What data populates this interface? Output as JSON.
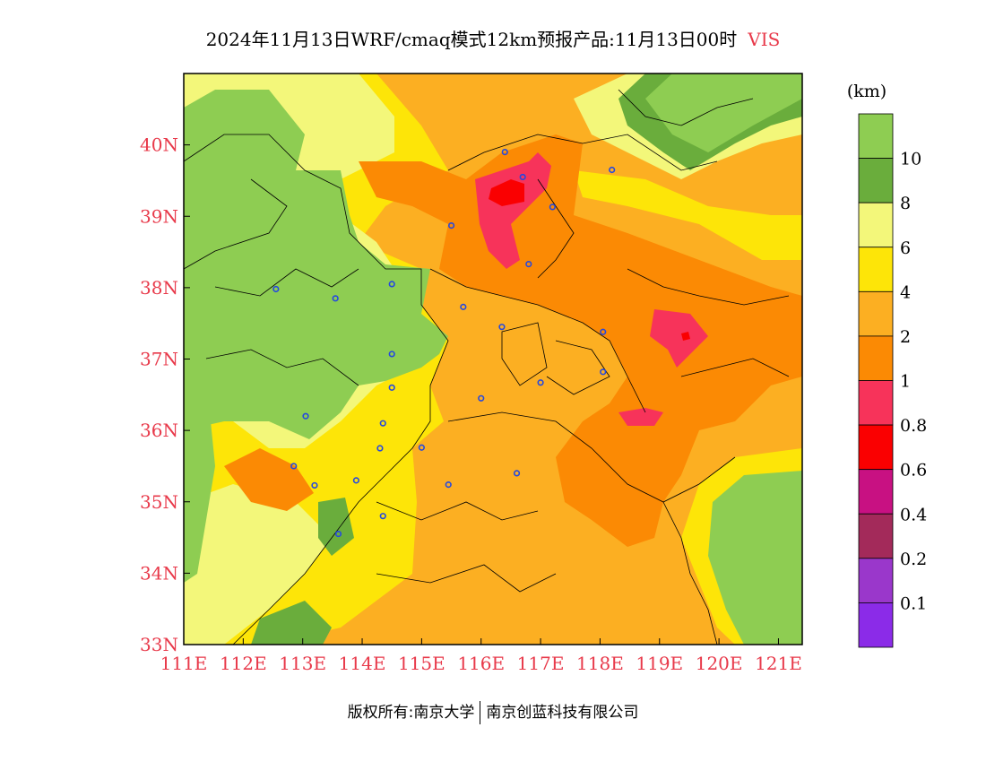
{
  "title": {
    "text": "2024年11月13日WRF/cmaq模式12km预报产品:11月13日00时",
    "variable": "VIS"
  },
  "map": {
    "lon_range": [
      111,
      121.4
    ],
    "lat_range": [
      33,
      41
    ],
    "lon_ticks": [
      "111E",
      "112E",
      "113E",
      "114E",
      "115E",
      "116E",
      "117E",
      "118E",
      "119E",
      "120E",
      "121E"
    ],
    "lat_ticks": [
      "33N",
      "34N",
      "35N",
      "36N",
      "37N",
      "38N",
      "39N",
      "40N"
    ],
    "city_icon": "city-marker-icon",
    "cities": [
      {
        "lon": 116.4,
        "lat": 39.9
      },
      {
        "lon": 116.7,
        "lat": 39.55
      },
      {
        "lon": 117.2,
        "lat": 39.13
      },
      {
        "lon": 118.2,
        "lat": 39.65
      },
      {
        "lon": 115.5,
        "lat": 38.87
      },
      {
        "lon": 116.8,
        "lat": 38.33
      },
      {
        "lon": 114.5,
        "lat": 38.05
      },
      {
        "lon": 113.55,
        "lat": 37.85
      },
      {
        "lon": 112.55,
        "lat": 37.98
      },
      {
        "lon": 115.7,
        "lat": 37.73
      },
      {
        "lon": 116.35,
        "lat": 37.45
      },
      {
        "lon": 118.05,
        "lat": 37.38
      },
      {
        "lon": 114.5,
        "lat": 37.07
      },
      {
        "lon": 118.05,
        "lat": 36.82
      },
      {
        "lon": 117.0,
        "lat": 36.67
      },
      {
        "lon": 116.0,
        "lat": 36.45
      },
      {
        "lon": 114.5,
        "lat": 36.6
      },
      {
        "lon": 114.35,
        "lat": 36.1
      },
      {
        "lon": 113.05,
        "lat": 36.2
      },
      {
        "lon": 114.3,
        "lat": 35.75
      },
      {
        "lon": 115.0,
        "lat": 35.76
      },
      {
        "lon": 112.85,
        "lat": 35.5
      },
      {
        "lon": 113.2,
        "lat": 35.23
      },
      {
        "lon": 113.9,
        "lat": 35.3
      },
      {
        "lon": 115.45,
        "lat": 35.24
      },
      {
        "lon": 116.6,
        "lat": 35.4
      },
      {
        "lon": 114.35,
        "lat": 34.8
      },
      {
        "lon": 113.6,
        "lat": 34.55
      }
    ]
  },
  "legend": {
    "unit": "(km)",
    "labels": [
      "10",
      "8",
      "6",
      "4",
      "2",
      "1",
      "0.8",
      "0.6",
      "0.4",
      "0.2",
      "0.1"
    ],
    "colors": [
      "#8ecd52",
      "#6aad3c",
      "#f3f77a",
      "#fde508",
      "#fcaf22",
      "#fb8a04",
      "#f7335a",
      "#fa0001",
      "#c81182",
      "#a32a5a",
      "#9a37cb",
      "#8b2be8"
    ]
  },
  "footer": {
    "left": "版权所有:南京大学",
    "right": "南京创蓝科技有限公司"
  }
}
